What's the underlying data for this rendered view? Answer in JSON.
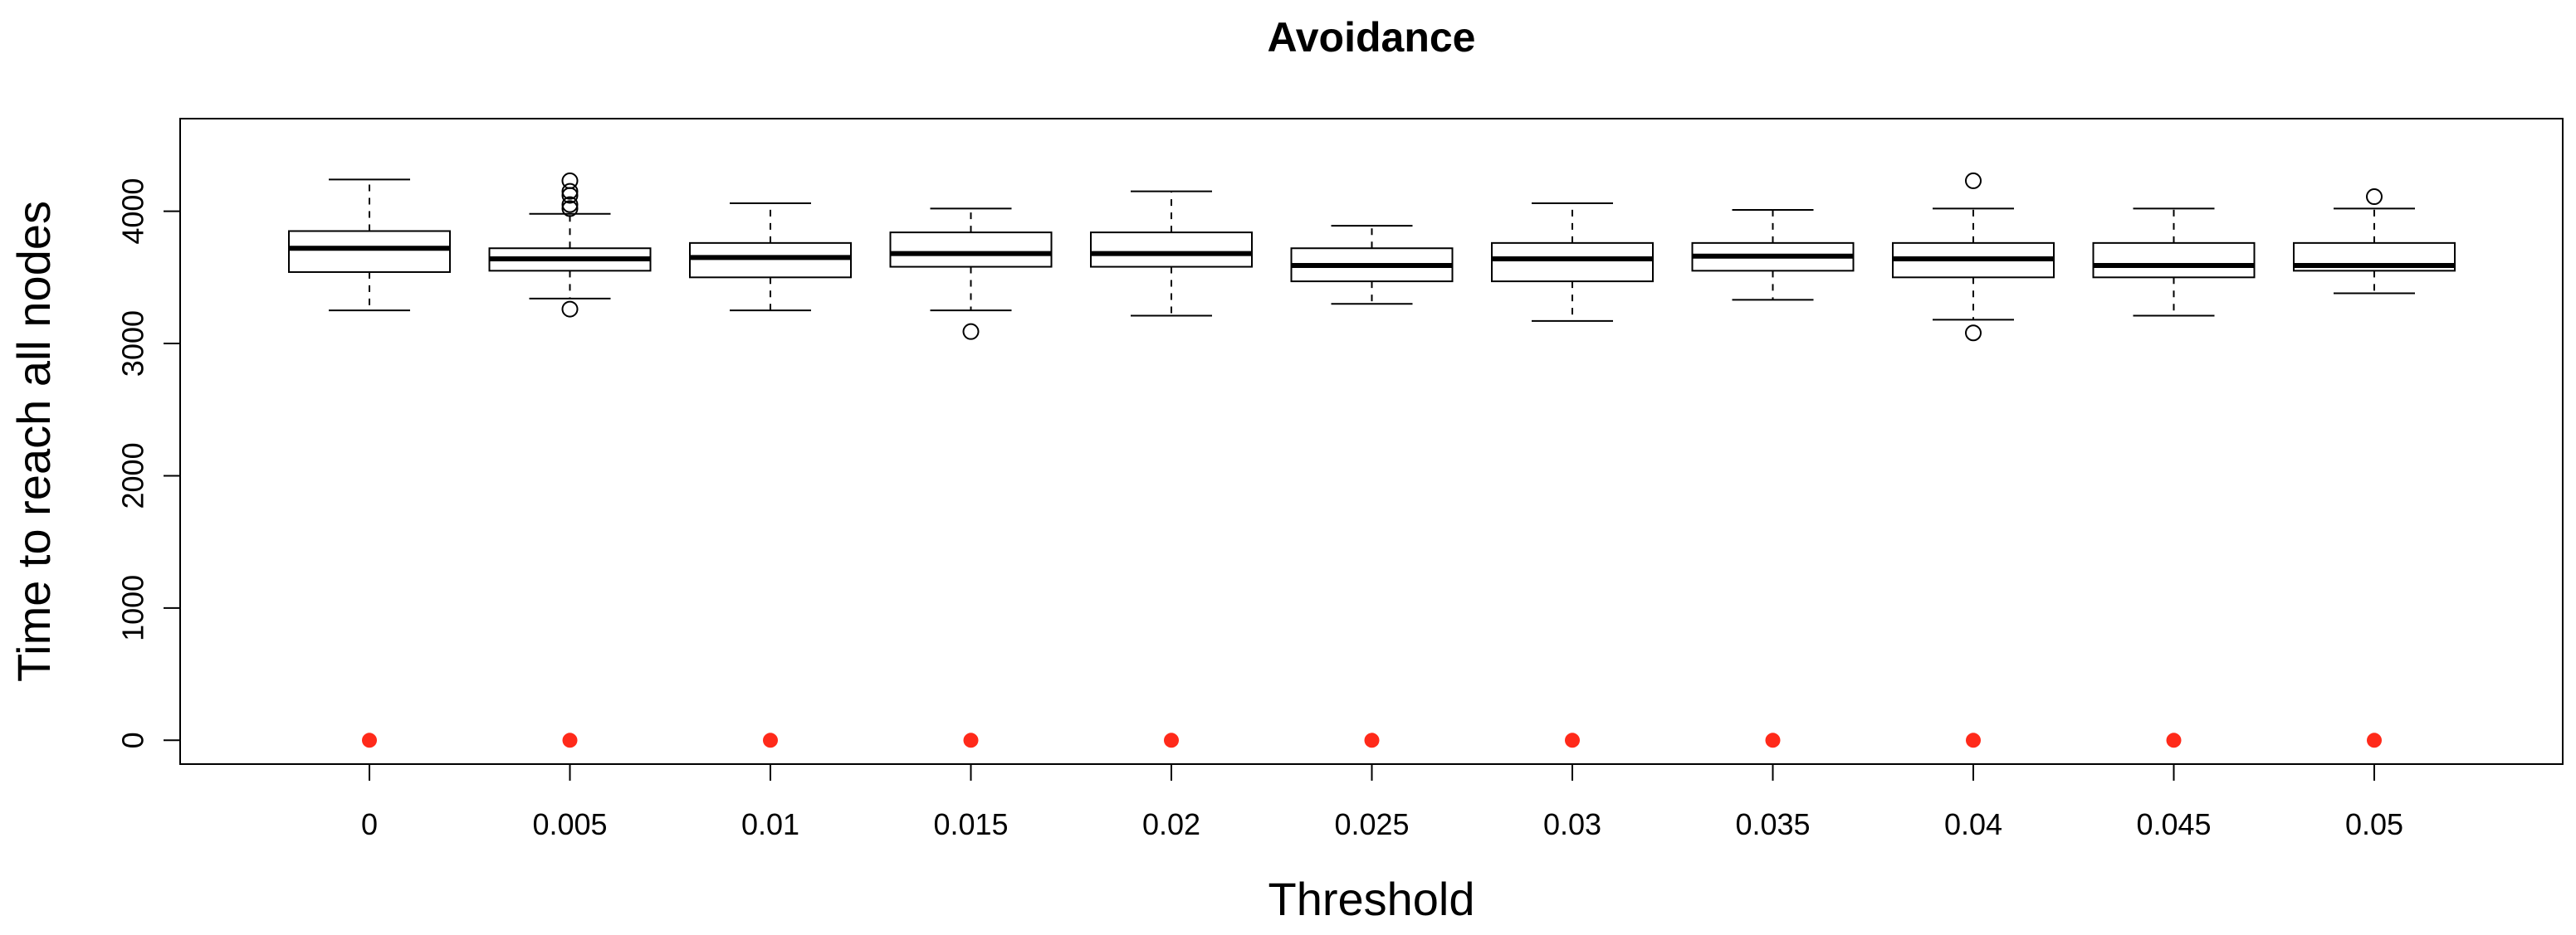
{
  "chart_data": {
    "type": "boxplot",
    "title": "Avoidance",
    "xlabel": "Threshold",
    "ylabel": "Time to reach all nodes",
    "ylim": [
      -180,
      4700
    ],
    "yticks": [
      0,
      1000,
      2000,
      3000,
      4000
    ],
    "categories": [
      "0",
      "0.005",
      "0.01",
      "0.015",
      "0.02",
      "0.025",
      "0.03",
      "0.035",
      "0.04",
      "0.045",
      "0.05"
    ],
    "boxes": [
      {
        "whisker_low": 3250,
        "q1": 3540,
        "median": 3720,
        "q3": 3850,
        "whisker_high": 4240,
        "outliers": []
      },
      {
        "whisker_low": 3340,
        "q1": 3550,
        "median": 3640,
        "q3": 3720,
        "whisker_high": 3980,
        "outliers": [
          3260,
          4020,
          4050,
          4120,
          4150,
          4230
        ]
      },
      {
        "whisker_low": 3250,
        "q1": 3500,
        "median": 3650,
        "q3": 3760,
        "whisker_high": 4060,
        "outliers": []
      },
      {
        "whisker_low": 3250,
        "q1": 3580,
        "median": 3680,
        "q3": 3840,
        "whisker_high": 4020,
        "outliers": [
          3090
        ]
      },
      {
        "whisker_low": 3210,
        "q1": 3580,
        "median": 3680,
        "q3": 3840,
        "whisker_high": 4150,
        "outliers": []
      },
      {
        "whisker_low": 3300,
        "q1": 3470,
        "median": 3590,
        "q3": 3720,
        "whisker_high": 3890,
        "outliers": []
      },
      {
        "whisker_low": 3170,
        "q1": 3470,
        "median": 3640,
        "q3": 3760,
        "whisker_high": 4060,
        "outliers": []
      },
      {
        "whisker_low": 3330,
        "q1": 3550,
        "median": 3660,
        "q3": 3760,
        "whisker_high": 4010,
        "outliers": []
      },
      {
        "whisker_low": 3180,
        "q1": 3500,
        "median": 3640,
        "q3": 3760,
        "whisker_high": 4020,
        "outliers": [
          3080,
          4230
        ]
      },
      {
        "whisker_low": 3210,
        "q1": 3500,
        "median": 3590,
        "q3": 3760,
        "whisker_high": 4020,
        "outliers": []
      },
      {
        "whisker_low": 3380,
        "q1": 3550,
        "median": 3590,
        "q3": 3760,
        "whisker_high": 4020,
        "outliers": [
          4110
        ]
      }
    ],
    "points": {
      "name": "red points",
      "color": "#ff2a1a",
      "values": [
        0,
        0,
        0,
        0,
        0,
        0,
        0,
        0,
        0,
        0,
        0
      ]
    },
    "grid": false,
    "legend": "none"
  }
}
